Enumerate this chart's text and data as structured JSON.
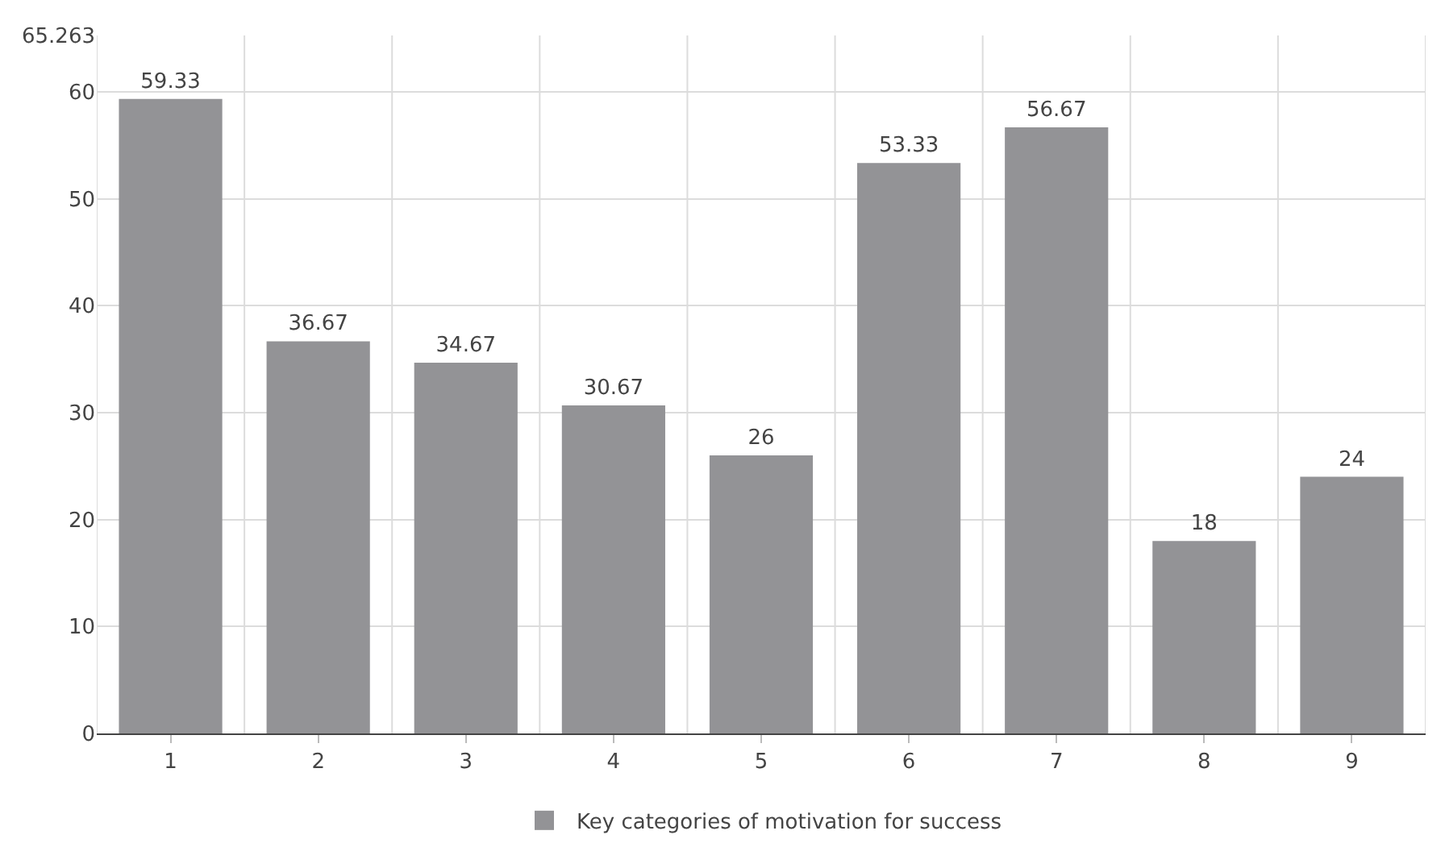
{
  "chart_data": {
    "type": "bar",
    "categories": [
      "1",
      "2",
      "3",
      "4",
      "5",
      "6",
      "7",
      "8",
      "9"
    ],
    "series": [
      {
        "name": "Key categories of motivation for success",
        "color": "#939396",
        "values": [
          59.33,
          36.67,
          34.67,
          30.67,
          26,
          53.33,
          56.67,
          18,
          24
        ]
      }
    ],
    "ylim": [
      0,
      65.263
    ],
    "yticks": [
      0,
      10,
      20,
      30,
      40,
      50,
      60,
      65.263
    ],
    "grid": true,
    "legend": "bottom",
    "data_labels": true
  }
}
